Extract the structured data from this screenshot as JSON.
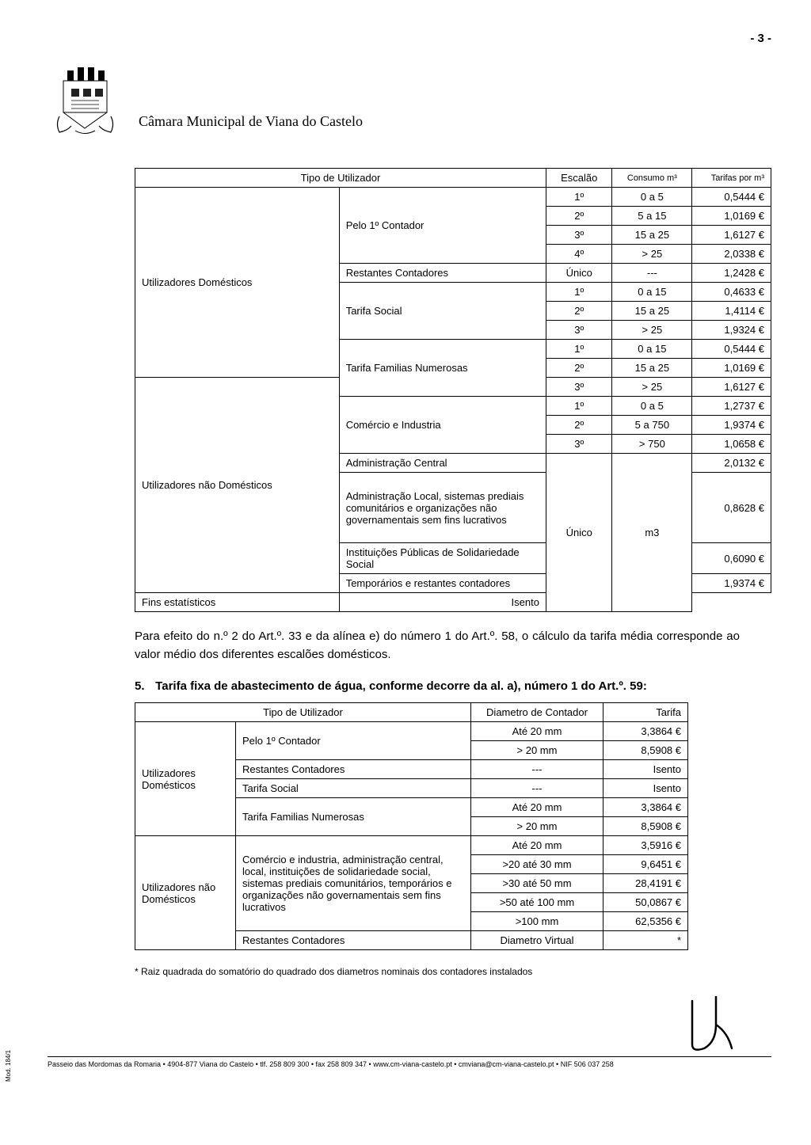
{
  "page_number": "- 3 -",
  "org_title": "Câmara Municipal de Viana do Castelo",
  "table1": {
    "headers": [
      "Tipo de Utilizador",
      "Escalão",
      "Consumo m³",
      "Tarifas por m³"
    ],
    "rows": [
      {
        "cat": "Utilizadores Domésticos",
        "cat_span": 10,
        "sub": "Pelo 1º Contador",
        "sub_span": 4,
        "esc": "1º",
        "cons": "0 a 5",
        "tar": "0,5444 €"
      },
      {
        "esc": "2º",
        "cons": "5 a 15",
        "tar": "1,0169 €"
      },
      {
        "esc": "3º",
        "cons": "15 a 25",
        "tar": "1,6127 €"
      },
      {
        "esc": "4º",
        "cons": "> 25",
        "tar": "2,0338 €"
      },
      {
        "sub": "Restantes Contadores",
        "sub_span": 1,
        "esc": "Único",
        "cons": "---",
        "tar": "1,2428 €"
      },
      {
        "sub": "Tarifa Social",
        "sub_span": 3,
        "esc": "1º",
        "cons": "0 a 15",
        "tar": "0,4633 €"
      },
      {
        "esc": "2º",
        "cons": "15 a 25",
        "tar": "1,4114 €"
      },
      {
        "esc": "3º",
        "cons": "> 25",
        "tar": "1,9324 €"
      },
      {
        "sub": "Tarifa Familias Numerosas",
        "sub_span": 3,
        "esc": "1º",
        "cons": "0 a 15",
        "tar": "0,5444 €"
      },
      {
        "esc": "2º",
        "cons": "15 a 25",
        "tar": "1,0169 €"
      },
      {
        "cat": "Utilizadores não Domésticos",
        "cat_span": 8,
        "esc": "3º",
        "cons": "> 25",
        "tar": "1,6127 €"
      },
      {
        "sub": "Comércio e Industria",
        "sub_span": 3,
        "esc": "1º",
        "cons": "0 a 5",
        "tar": "1,2737 €"
      },
      {
        "esc": "2º",
        "cons": "5 a 750",
        "tar": "1,9374 €"
      },
      {
        "esc": "3º",
        "cons": "> 750",
        "tar": "1,0658 €"
      },
      {
        "sub": "Administração Central",
        "sub_span": 1,
        "esc_merged_start": true,
        "esc_merged_span": 5,
        "esc_val": "Único",
        "cons_merged_span": 5,
        "cons_val": "m3",
        "tar": "2,0132 €"
      },
      {
        "sub": "Administração Local, sistemas prediais comunitários e organizações não governamentais sem fins lucrativos",
        "sub_span": 1,
        "tar": "0,8628 €",
        "tall": true
      },
      {
        "sub": "Instituições Públicas de Solidariedade Social",
        "sub_span": 1,
        "tar": "0,6090 €"
      },
      {
        "sub": "Temporários e restantes contadores",
        "sub_span": 1,
        "tar": "1,9374 €"
      },
      {
        "sub": "Fins estatísticos",
        "sub_span": 1,
        "tar": "Isento",
        "tar_center": true
      }
    ]
  },
  "paragraph1": "Para efeito do n.º 2 do Art.º. 33 e da alínea e) do número 1 do Art.º. 58, o cálculo da tarifa média corresponde ao valor médio dos diferentes escalões domésticos.",
  "section5_num": "5.",
  "section5_title": "Tarifa fixa de abastecimento de água, conforme decorre da al. a), número 1 do Art.º. 59:",
  "table2": {
    "headers": [
      "Tipo de Utilizador",
      "Diametro de Contador",
      "Tarifa"
    ],
    "rows": [
      {
        "cat": "Utilizadores Domésticos",
        "cat_span": 6,
        "sub": "Pelo 1º Contador",
        "sub_span": 2,
        "diam": "Até 20 mm",
        "tar": "3,3864 €"
      },
      {
        "diam": "> 20 mm",
        "tar": "8,5908 €"
      },
      {
        "sub": "Restantes Contadores",
        "sub_span": 1,
        "diam": "---",
        "tar": "Isento",
        "tar_center": true
      },
      {
        "sub": "Tarifa Social",
        "sub_span": 1,
        "diam": "---",
        "tar": "Isento",
        "tar_center": true
      },
      {
        "sub": "Tarifa Familias Numerosas",
        "sub_span": 2,
        "diam": "Até 20 mm",
        "tar": "3,3864 €"
      },
      {
        "diam": "> 20 mm",
        "tar": "8,5908 €"
      },
      {
        "cat": "Utilizadores não Domésticos",
        "cat_span": 6,
        "sub": "Comércio e industria, administração central, local, instituições de solidariedade social, sistemas prediais comunitários, temporários e organizações não governamentais sem fins lucrativos",
        "sub_span": 5,
        "diam": "Até 20 mm",
        "tar": "3,5916 €"
      },
      {
        "diam": ">20 até 30 mm",
        "tar": "9,6451 €"
      },
      {
        "diam": ">30 até 50 mm",
        "tar": "28,4191 €"
      },
      {
        "diam": ">50 até 100 mm",
        "tar": "50,0867 €"
      },
      {
        "diam": ">100 mm",
        "tar": "62,5356 €"
      },
      {
        "sub": "Restantes Contadores",
        "sub_span": 1,
        "diam": "Diametro Virtual",
        "tar": "*",
        "tar_center": true
      }
    ]
  },
  "footnote": "* Raiz quadrada do somatório do quadrado dos diametros nominais dos contadores instalados",
  "footer": "Passeio das Mordomas da Romaria • 4904-877 Viana do Castelo • tlf. 258 809 300 • fax 258 809 347 • www.cm-viana-castelo.pt • cmviana@cm-viana-castelo.pt • NIF 506 037 258",
  "side_label": "Mod. 184/1"
}
